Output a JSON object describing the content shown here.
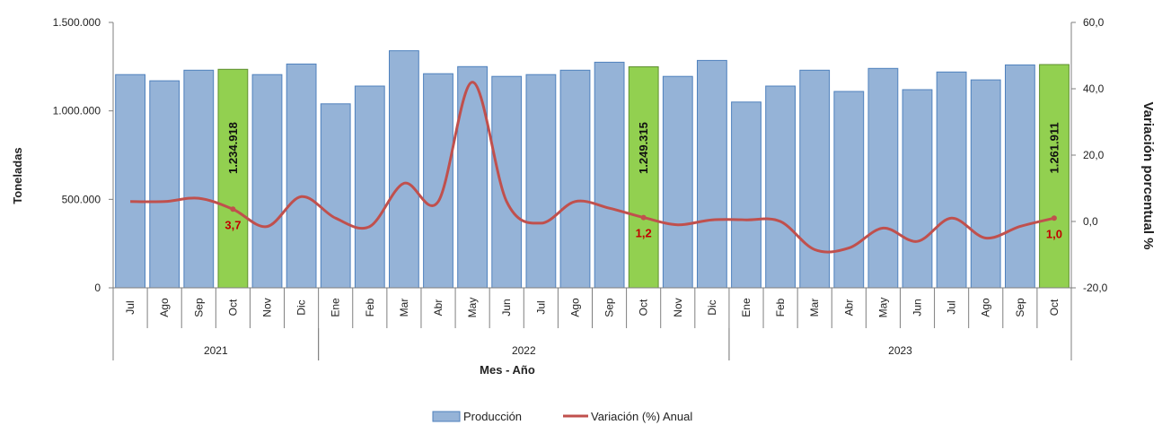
{
  "chart_data": {
    "type": "bar",
    "categories": [
      "Jul",
      "Ago",
      "Sep",
      "Oct",
      "Nov",
      "Dic",
      "Ene",
      "Feb",
      "Mar",
      "Abr",
      "May",
      "Jun",
      "Jul",
      "Ago",
      "Sep",
      "Oct",
      "Nov",
      "Dic",
      "Ene",
      "Feb",
      "Mar",
      "Abr",
      "May",
      "Jun",
      "Jul",
      "Ago",
      "Sep",
      "Oct"
    ],
    "years": [
      {
        "label": "2021",
        "start": 0,
        "end": 5
      },
      {
        "label": "2022",
        "start": 6,
        "end": 17
      },
      {
        "label": "2023",
        "start": 18,
        "end": 27
      }
    ],
    "series": [
      {
        "name": "Producción",
        "type": "bar",
        "axis": "left",
        "color": "#95b3d7",
        "values": [
          1205000,
          1170000,
          1230000,
          1234918,
          1205000,
          1265000,
          1040000,
          1140000,
          1340000,
          1210000,
          1250000,
          1195000,
          1205000,
          1230000,
          1275000,
          1249315,
          1195000,
          1285000,
          1050000,
          1140000,
          1230000,
          1110000,
          1240000,
          1120000,
          1220000,
          1175000,
          1260000,
          1261911
        ]
      },
      {
        "name": "Variación (%) Anual",
        "type": "line",
        "axis": "right",
        "color": "#c0504d",
        "values": [
          6.0,
          6.0,
          7.0,
          3.7,
          -1.5,
          7.5,
          1.0,
          -1.5,
          11.5,
          6.0,
          42.0,
          6.0,
          -0.5,
          6.0,
          4.0,
          1.2,
          -1.0,
          0.5,
          0.5,
          0.0,
          -8.5,
          -8.0,
          -2.0,
          -6.0,
          1.0,
          -5.0,
          -1.5,
          1.0
        ]
      }
    ],
    "highlight_indices": [
      3,
      15,
      27
    ],
    "highlight_color": "#92d050",
    "bar_labels": [
      {
        "index": 3,
        "text": "1.234.918"
      },
      {
        "index": 15,
        "text": "1.249.315"
      },
      {
        "index": 27,
        "text": "1.261.911"
      }
    ],
    "pct_labels": [
      {
        "index": 3,
        "text": "3,7"
      },
      {
        "index": 15,
        "text": "1,2"
      },
      {
        "index": 27,
        "text": "1,0"
      }
    ],
    "y_left": {
      "label": "Toneladas",
      "min": 0,
      "max": 1500000,
      "ticks": [
        0,
        500000,
        1000000,
        1500000
      ],
      "tick_labels": [
        "0",
        "500.000",
        "1.000.000",
        "1.500.000"
      ]
    },
    "y_right": {
      "label": "Variación porcentual %",
      "min": -20,
      "max": 60,
      "ticks": [
        -20,
        0,
        20,
        40,
        60
      ],
      "tick_labels": [
        "-20,0",
        "0,0",
        "20,0",
        "40,0",
        "60,0"
      ]
    },
    "xlabel": "Mes - Año",
    "legend_position": "bottom",
    "grid": false
  }
}
